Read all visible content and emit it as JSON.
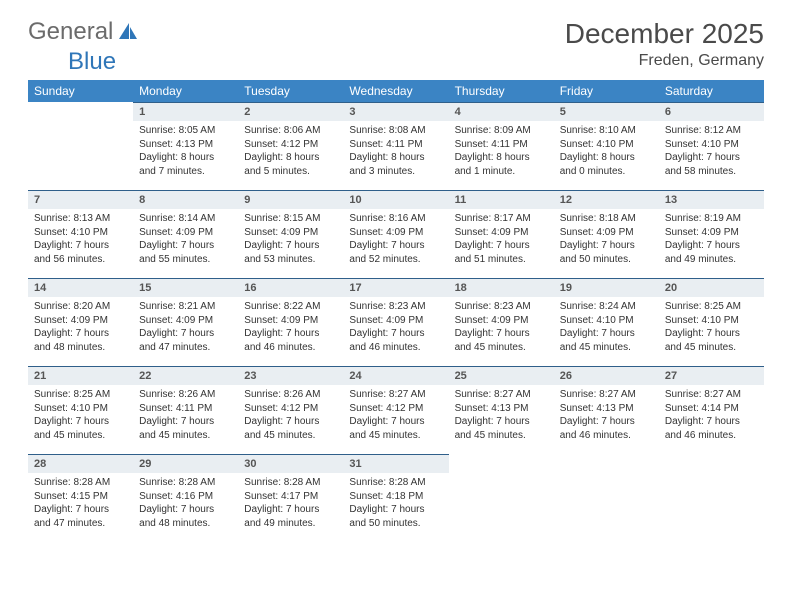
{
  "brand": {
    "part1": "General",
    "part2": "Blue"
  },
  "title": "December 2025",
  "location": "Freden, Germany",
  "colors": {
    "header_bg": "#3b84c4",
    "header_text": "#ffffff",
    "daynum_bg": "#e9eef2",
    "daynum_border": "#2f5f8a",
    "body_text": "#333333",
    "brand_gray": "#6b6b6b",
    "brand_blue": "#2f76b8"
  },
  "day_labels": [
    "Sunday",
    "Monday",
    "Tuesday",
    "Wednesday",
    "Thursday",
    "Friday",
    "Saturday"
  ],
  "layout": {
    "start_offset": 1,
    "days_in_month": 31
  },
  "days": [
    {
      "n": 1,
      "sunrise": "8:05 AM",
      "sunset": "4:13 PM",
      "daylight": "8 hours and 7 minutes."
    },
    {
      "n": 2,
      "sunrise": "8:06 AM",
      "sunset": "4:12 PM",
      "daylight": "8 hours and 5 minutes."
    },
    {
      "n": 3,
      "sunrise": "8:08 AM",
      "sunset": "4:11 PM",
      "daylight": "8 hours and 3 minutes."
    },
    {
      "n": 4,
      "sunrise": "8:09 AM",
      "sunset": "4:11 PM",
      "daylight": "8 hours and 1 minute."
    },
    {
      "n": 5,
      "sunrise": "8:10 AM",
      "sunset": "4:10 PM",
      "daylight": "8 hours and 0 minutes."
    },
    {
      "n": 6,
      "sunrise": "8:12 AM",
      "sunset": "4:10 PM",
      "daylight": "7 hours and 58 minutes."
    },
    {
      "n": 7,
      "sunrise": "8:13 AM",
      "sunset": "4:10 PM",
      "daylight": "7 hours and 56 minutes."
    },
    {
      "n": 8,
      "sunrise": "8:14 AM",
      "sunset": "4:09 PM",
      "daylight": "7 hours and 55 minutes."
    },
    {
      "n": 9,
      "sunrise": "8:15 AM",
      "sunset": "4:09 PM",
      "daylight": "7 hours and 53 minutes."
    },
    {
      "n": 10,
      "sunrise": "8:16 AM",
      "sunset": "4:09 PM",
      "daylight": "7 hours and 52 minutes."
    },
    {
      "n": 11,
      "sunrise": "8:17 AM",
      "sunset": "4:09 PM",
      "daylight": "7 hours and 51 minutes."
    },
    {
      "n": 12,
      "sunrise": "8:18 AM",
      "sunset": "4:09 PM",
      "daylight": "7 hours and 50 minutes."
    },
    {
      "n": 13,
      "sunrise": "8:19 AM",
      "sunset": "4:09 PM",
      "daylight": "7 hours and 49 minutes."
    },
    {
      "n": 14,
      "sunrise": "8:20 AM",
      "sunset": "4:09 PM",
      "daylight": "7 hours and 48 minutes."
    },
    {
      "n": 15,
      "sunrise": "8:21 AM",
      "sunset": "4:09 PM",
      "daylight": "7 hours and 47 minutes."
    },
    {
      "n": 16,
      "sunrise": "8:22 AM",
      "sunset": "4:09 PM",
      "daylight": "7 hours and 46 minutes."
    },
    {
      "n": 17,
      "sunrise": "8:23 AM",
      "sunset": "4:09 PM",
      "daylight": "7 hours and 46 minutes."
    },
    {
      "n": 18,
      "sunrise": "8:23 AM",
      "sunset": "4:09 PM",
      "daylight": "7 hours and 45 minutes."
    },
    {
      "n": 19,
      "sunrise": "8:24 AM",
      "sunset": "4:10 PM",
      "daylight": "7 hours and 45 minutes."
    },
    {
      "n": 20,
      "sunrise": "8:25 AM",
      "sunset": "4:10 PM",
      "daylight": "7 hours and 45 minutes."
    },
    {
      "n": 21,
      "sunrise": "8:25 AM",
      "sunset": "4:10 PM",
      "daylight": "7 hours and 45 minutes."
    },
    {
      "n": 22,
      "sunrise": "8:26 AM",
      "sunset": "4:11 PM",
      "daylight": "7 hours and 45 minutes."
    },
    {
      "n": 23,
      "sunrise": "8:26 AM",
      "sunset": "4:12 PM",
      "daylight": "7 hours and 45 minutes."
    },
    {
      "n": 24,
      "sunrise": "8:27 AM",
      "sunset": "4:12 PM",
      "daylight": "7 hours and 45 minutes."
    },
    {
      "n": 25,
      "sunrise": "8:27 AM",
      "sunset": "4:13 PM",
      "daylight": "7 hours and 45 minutes."
    },
    {
      "n": 26,
      "sunrise": "8:27 AM",
      "sunset": "4:13 PM",
      "daylight": "7 hours and 46 minutes."
    },
    {
      "n": 27,
      "sunrise": "8:27 AM",
      "sunset": "4:14 PM",
      "daylight": "7 hours and 46 minutes."
    },
    {
      "n": 28,
      "sunrise": "8:28 AM",
      "sunset": "4:15 PM",
      "daylight": "7 hours and 47 minutes."
    },
    {
      "n": 29,
      "sunrise": "8:28 AM",
      "sunset": "4:16 PM",
      "daylight": "7 hours and 48 minutes."
    },
    {
      "n": 30,
      "sunrise": "8:28 AM",
      "sunset": "4:17 PM",
      "daylight": "7 hours and 49 minutes."
    },
    {
      "n": 31,
      "sunrise": "8:28 AM",
      "sunset": "4:18 PM",
      "daylight": "7 hours and 50 minutes."
    }
  ],
  "labels": {
    "sunrise": "Sunrise:",
    "sunset": "Sunset:",
    "daylight": "Daylight:"
  }
}
